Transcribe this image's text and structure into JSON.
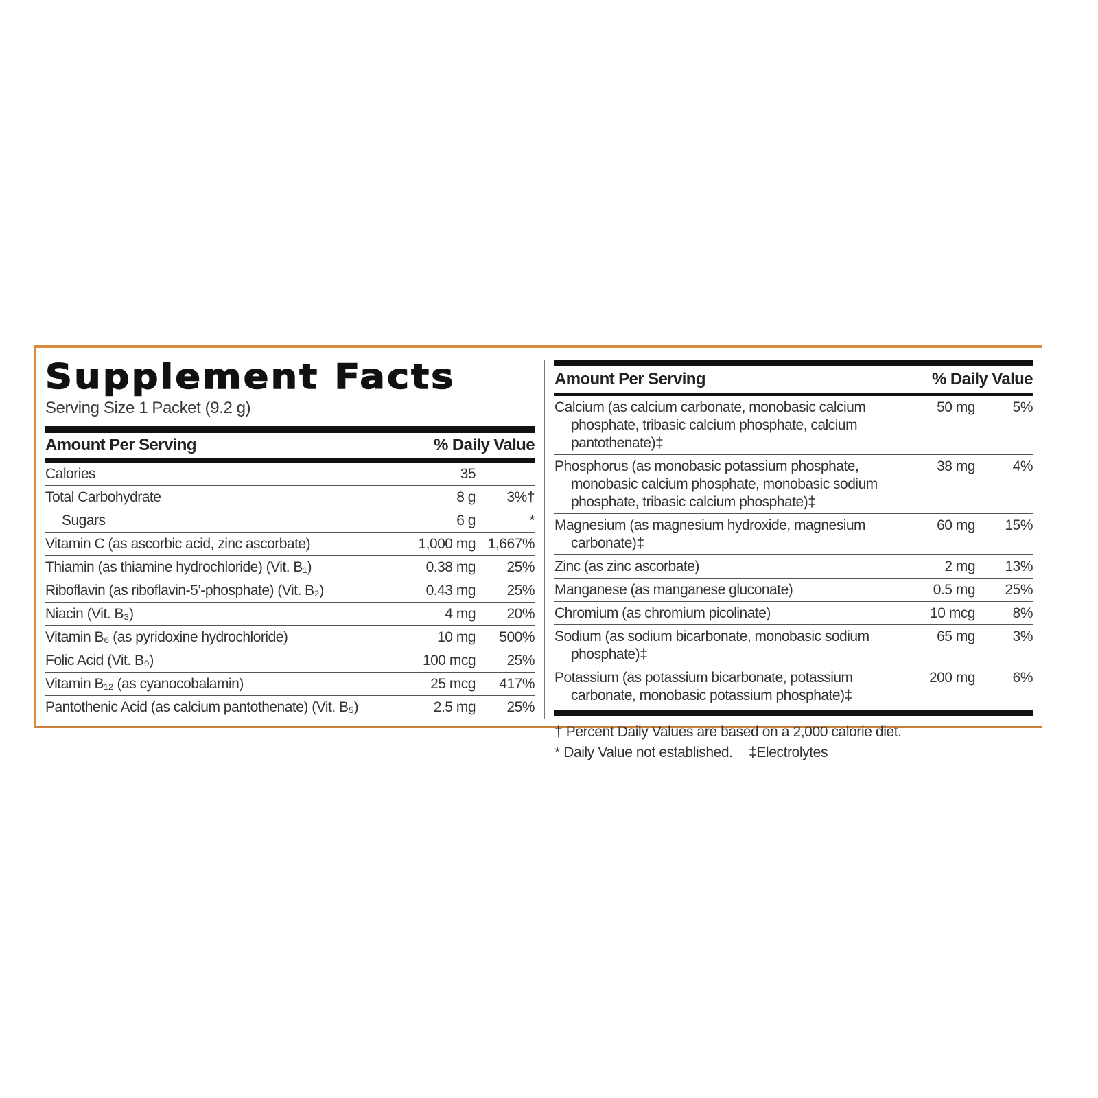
{
  "title": "Supplement Facts",
  "serving_size": "Serving Size 1 Packet (9.2 g)",
  "left": {
    "header": {
      "amount": "Amount Per Serving",
      "dv": "% Daily Value"
    },
    "rows": [
      {
        "name": "Calories",
        "amount": "35"
      },
      {
        "name": "Total Carbohydrate",
        "amount": "8 g",
        "dv": "3%†"
      },
      {
        "name": "Sugars",
        "amount": "6 g",
        "dv": "*",
        "indent": true
      },
      {
        "name": "Vitamin C (as ascorbic acid, zinc ascorbate)",
        "amount": "1,000 mg",
        "dv": "1,667%"
      },
      {
        "name": "Thiamin (as thiamine hydrochloride) (Vit. B₁)",
        "amount": "0.38 mg",
        "dv": "25%"
      },
      {
        "name": "Riboflavin (as riboflavin-5’-phosphate) (Vit. B₂)",
        "amount": "0.43 mg",
        "dv": "25%"
      },
      {
        "name": "Niacin (Vit. B₃)",
        "amount": "4 mg",
        "dv": "20%"
      },
      {
        "name": "Vitamin B₆ (as pyridoxine hydrochloride)",
        "amount": "10 mg",
        "dv": "500%"
      },
      {
        "name": "Folic Acid (Vit. B₉)",
        "amount": "100 mcg",
        "dv": "25%"
      },
      {
        "name": "Vitamin B₁₂ (as cyanocobalamin)",
        "amount": "25 mcg",
        "dv": "417%"
      },
      {
        "name": "Pantothenic Acid (as calcium pantothenate) (Vit. B₅)",
        "amount": "2.5 mg",
        "dv": "25%"
      }
    ]
  },
  "right": {
    "header": {
      "amount": "Amount Per Serving",
      "dv": "% Daily Value"
    },
    "rows": [
      {
        "name": "Calcium (as calcium carbonate, monobasic calcium phosphate, tribasic calcium phosphate, calcium pantothenate)‡",
        "amount": "50 mg",
        "dv": "5%"
      },
      {
        "name": "Phosphorus (as monobasic potassium phosphate, monobasic calcium phosphate, monobasic sodium phosphate, tribasic calcium phosphate)‡",
        "amount": "38 mg",
        "dv": "4%"
      },
      {
        "name": "Magnesium (as magnesium hydroxide, magnesium carbonate)‡",
        "amount": "60 mg",
        "dv": "15%"
      },
      {
        "name": "Zinc (as zinc ascorbate)",
        "amount": "2 mg",
        "dv": "13%"
      },
      {
        "name": "Manganese (as manganese gluconate)",
        "amount": "0.5 mg",
        "dv": "25%"
      },
      {
        "name": "Chromium (as chromium picolinate)",
        "amount": "10 mcg",
        "dv": "8%"
      },
      {
        "name": "Sodium (as sodium bicarbonate, monobasic sodium phosphate)‡",
        "amount": "65 mg",
        "dv": "3%"
      },
      {
        "name": "Potassium (as potassium bicarbonate, potassium carbonate, monobasic potassium phosphate)‡",
        "amount": "200 mg",
        "dv": "6%"
      }
    ]
  },
  "footnotes": [
    "† Percent Daily Values are based on a 2,000 calorie diet.",
    "* Daily Value not established.",
    "‡Electrolytes"
  ]
}
